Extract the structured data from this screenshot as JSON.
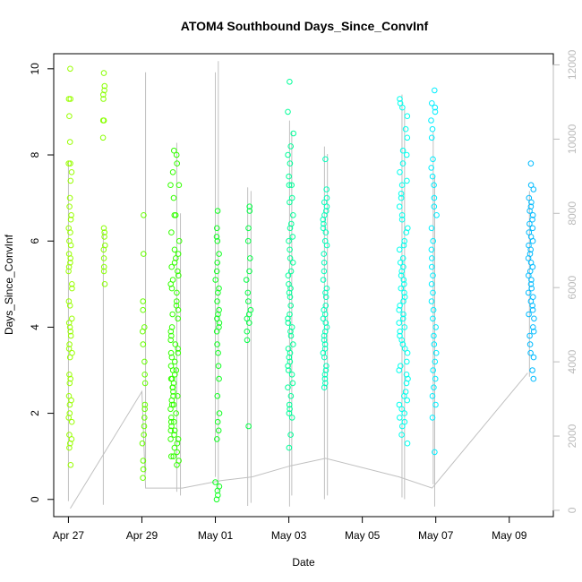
{
  "chart_data": {
    "type": "scatter",
    "title": "ATOM4 Southbound Days_Since_ConvInf",
    "xlabel": "Date",
    "ylabel": "Days_Since_ConvInf",
    "xlim_days": [
      -0.4,
      13.2
    ],
    "ylim": [
      -0.4,
      10.35
    ],
    "ylim_right": [
      -170,
      12300
    ],
    "x_ticks": [
      {
        "day": 0,
        "label": "Apr 27"
      },
      {
        "day": 2,
        "label": "Apr 29"
      },
      {
        "day": 4,
        "label": "May 01"
      },
      {
        "day": 6,
        "label": "May 03"
      },
      {
        "day": 8,
        "label": "May 05"
      },
      {
        "day": 10,
        "label": "May 07"
      },
      {
        "day": 12,
        "label": "May 09"
      }
    ],
    "y_ticks": [
      0,
      2,
      4,
      6,
      8,
      10
    ],
    "y_ticks_right": [
      0,
      2000,
      4000,
      6000,
      8000,
      10000,
      12000
    ],
    "grid": false,
    "legend": "none",
    "point_clusters": [
      {
        "x": 0.05,
        "spread": 0.05,
        "color": "#99ff00",
        "values": [
          10.0,
          9.3,
          9.3,
          8.9,
          8.3,
          7.8,
          7.8,
          7.6,
          7.4,
          7.0,
          6.8,
          6.6,
          6.5,
          6.3,
          6.2,
          6.0,
          5.9,
          5.7,
          5.6,
          5.5,
          5.4,
          5.3,
          5.0,
          4.9,
          4.6,
          4.5,
          4.2,
          4.1,
          4.0,
          3.9,
          3.8,
          3.6,
          3.5,
          3.4,
          3.3,
          2.9,
          2.8,
          2.7,
          2.4,
          2.3,
          2.2,
          2.0,
          1.9,
          1.8,
          1.5,
          1.4,
          1.3,
          1.2,
          0.8
        ]
      },
      {
        "x": 0.97,
        "spread": 0.03,
        "color": "#88ff00",
        "values": [
          9.9,
          9.6,
          9.5,
          9.4,
          9.3,
          8.8,
          8.8,
          8.4,
          6.3,
          6.2,
          6.1,
          5.9,
          5.8,
          5.6,
          5.4,
          5.3,
          5.0
        ]
      },
      {
        "x": 2.05,
        "spread": 0.04,
        "color": "#66ff00",
        "values": [
          6.6,
          5.7,
          4.6,
          4.4,
          4.0,
          3.9,
          3.6,
          3.2,
          2.9,
          2.7,
          2.2,
          2.1,
          1.9,
          1.7,
          1.5,
          1.3,
          0.9,
          0.7,
          0.5
        ]
      },
      {
        "x": 2.9,
        "spread": 0.12,
        "color": "#33ff00",
        "values": [
          8.1,
          8.0,
          7.8,
          7.6,
          7.3,
          7.3,
          7.0,
          6.6,
          6.6,
          6.2,
          6.0,
          5.8,
          5.7,
          5.6,
          5.5,
          5.4,
          5.3,
          5.2,
          5.1,
          5.0,
          4.9,
          4.8,
          4.6,
          4.5,
          4.4,
          4.3,
          4.2,
          4.0,
          3.9,
          3.8,
          3.7,
          3.6,
          3.5,
          3.4,
          3.3,
          3.2,
          3.1,
          3.0,
          2.9,
          2.8,
          2.7,
          2.6,
          2.5,
          2.4,
          2.3,
          2.2,
          2.1,
          2.0,
          1.9,
          1.8,
          1.7,
          1.6,
          1.5,
          1.4,
          1.3,
          1.2,
          1.1,
          1.0,
          0.9,
          0.8,
          3.0,
          2.6,
          2.2,
          1.8,
          1.4,
          1.0,
          3.4,
          2.8,
          2.4,
          1.6
        ]
      },
      {
        "x": 4.05,
        "spread": 0.06,
        "color": "#11ff22",
        "values": [
          6.7,
          6.3,
          6.1,
          6.0,
          5.7,
          5.5,
          5.3,
          5.1,
          4.9,
          4.8,
          4.6,
          4.4,
          4.3,
          4.2,
          4.1,
          4.0,
          3.9,
          3.6,
          3.4,
          3.1,
          2.8,
          2.4,
          2.0,
          1.8,
          1.6,
          1.4,
          0.4,
          0.3,
          0.2,
          0.1,
          0.0
        ]
      },
      {
        "x": 4.9,
        "spread": 0.06,
        "color": "#00ff44",
        "values": [
          6.8,
          6.7,
          6.3,
          6.0,
          5.6,
          5.3,
          5.1,
          4.8,
          4.6,
          4.4,
          4.3,
          4.2,
          4.1,
          3.9,
          3.7,
          1.7
        ]
      },
      {
        "x": 6.05,
        "spread": 0.08,
        "color": "#00ff99",
        "values": [
          9.7,
          9.0,
          8.5,
          8.2,
          8.0,
          7.8,
          7.5,
          7.3,
          7.3,
          7.0,
          6.9,
          6.6,
          6.4,
          6.3,
          6.1,
          6.0,
          5.8,
          5.6,
          5.5,
          5.3,
          5.2,
          5.0,
          4.9,
          4.8,
          4.7,
          4.5,
          4.3,
          4.2,
          4.1,
          4.0,
          3.9,
          3.8,
          3.6,
          3.5,
          3.4,
          3.3,
          3.2,
          3.1,
          3.0,
          2.9,
          2.7,
          2.6,
          2.4,
          2.2,
          2.1,
          2.0,
          1.9,
          1.5,
          1.2
        ]
      },
      {
        "x": 6.98,
        "spread": 0.06,
        "color": "#00ffbb",
        "values": [
          7.9,
          7.2,
          7.0,
          6.9,
          6.8,
          6.7,
          6.6,
          6.5,
          6.4,
          6.3,
          6.2,
          6.0,
          5.9,
          5.7,
          5.5,
          5.3,
          5.1,
          4.9,
          4.8,
          4.7,
          4.5,
          4.4,
          4.3,
          4.2,
          4.1,
          4.0,
          3.9,
          3.8,
          3.7,
          3.6,
          3.5,
          3.4,
          3.3,
          3.1,
          3.0,
          2.9,
          2.8,
          2.7,
          2.6
        ]
      },
      {
        "x": 9.12,
        "spread": 0.12,
        "color": "#00ffee",
        "values": [
          9.3,
          9.2,
          9.1,
          8.9,
          8.6,
          8.4,
          8.1,
          8.0,
          7.8,
          7.6,
          7.4,
          7.3,
          7.1,
          7.0,
          6.8,
          6.6,
          6.5,
          6.3,
          6.2,
          6.0,
          5.9,
          5.8,
          5.6,
          5.5,
          5.4,
          5.3,
          5.2,
          5.1,
          5.0,
          4.9,
          4.8,
          4.7,
          4.6,
          4.5,
          4.4,
          4.3,
          4.2,
          4.1,
          4.0,
          3.9,
          3.8,
          3.7,
          3.6,
          3.5,
          3.4,
          3.2,
          3.1,
          3.0,
          2.9,
          2.8,
          2.7,
          2.5,
          2.4,
          2.3,
          2.2,
          2.1,
          2.0,
          1.9,
          1.8,
          1.7,
          1.5,
          1.3
        ]
      },
      {
        "x": 9.95,
        "spread": 0.08,
        "color": "#00eeff",
        "values": [
          9.5,
          9.2,
          9.1,
          9.0,
          8.8,
          8.6,
          8.4,
          7.9,
          7.7,
          7.5,
          7.3,
          7.0,
          6.8,
          6.6,
          6.3,
          6.0,
          5.8,
          5.6,
          5.4,
          5.2,
          5.0,
          4.8,
          4.6,
          4.4,
          4.2,
          4.0,
          3.8,
          3.6,
          3.4,
          3.2,
          3.0,
          2.8,
          2.6,
          2.4,
          2.2,
          1.9,
          1.1
        ]
      },
      {
        "x": 12.6,
        "spread": 0.08,
        "color": "#00bbff",
        "values": [
          7.8,
          7.3,
          7.2,
          7.0,
          6.9,
          6.8,
          6.7,
          6.6,
          6.5,
          6.4,
          6.3,
          6.2,
          6.1,
          6.0,
          5.9,
          5.8,
          5.7,
          5.6,
          5.5,
          5.4,
          5.3,
          5.2,
          5.1,
          5.0,
          4.9,
          4.8,
          4.7,
          4.6,
          4.5,
          4.4,
          4.3,
          4.2,
          4.0,
          3.9,
          3.8,
          3.6,
          3.4,
          3.3,
          3.0,
          2.8
        ]
      }
    ],
    "grey_line_series": {
      "color": "#c0c0c0",
      "vertical_spikes": [
        {
          "x": 0.0,
          "low": 250,
          "high": 9400
        },
        {
          "x": 0.95,
          "low": 150,
          "high": 7500
        },
        {
          "x": 2.1,
          "low": 1000,
          "high": 11800
        },
        {
          "x": 2.95,
          "low": 500,
          "high": 9900
        },
        {
          "x": 3.05,
          "low": 400,
          "high": 8000
        },
        {
          "x": 4.0,
          "low": 900,
          "high": 11800
        },
        {
          "x": 4.08,
          "low": 500,
          "high": 12100
        },
        {
          "x": 4.88,
          "low": 120,
          "high": 8700
        },
        {
          "x": 4.97,
          "low": 200,
          "high": 8600
        },
        {
          "x": 6.02,
          "low": 100,
          "high": 10500
        },
        {
          "x": 6.08,
          "low": 400,
          "high": 10200
        },
        {
          "x": 6.97,
          "low": 300,
          "high": 9800
        },
        {
          "x": 7.05,
          "low": 400,
          "high": 9600
        },
        {
          "x": 9.08,
          "low": 350,
          "high": 11200
        },
        {
          "x": 9.15,
          "low": 300,
          "high": 10800
        },
        {
          "x": 9.93,
          "low": 700,
          "high": 10200
        },
        {
          "x": 9.97,
          "low": 100,
          "high": 9000
        },
        {
          "x": 12.55,
          "low": 3600,
          "high": 8600
        }
      ],
      "connector": [
        {
          "x": 0.05,
          "y": 50
        },
        {
          "x": 2.0,
          "y": 3200
        },
        {
          "x": 2.1,
          "y": 600
        },
        {
          "x": 3.1,
          "y": 600
        },
        {
          "x": 4.15,
          "y": 800
        },
        {
          "x": 5.0,
          "y": 900
        },
        {
          "x": 6.05,
          "y": 1200
        },
        {
          "x": 7.0,
          "y": 1400
        },
        {
          "x": 9.0,
          "y": 900
        },
        {
          "x": 9.9,
          "y": 600
        },
        {
          "x": 12.5,
          "y": 3700
        }
      ]
    }
  }
}
